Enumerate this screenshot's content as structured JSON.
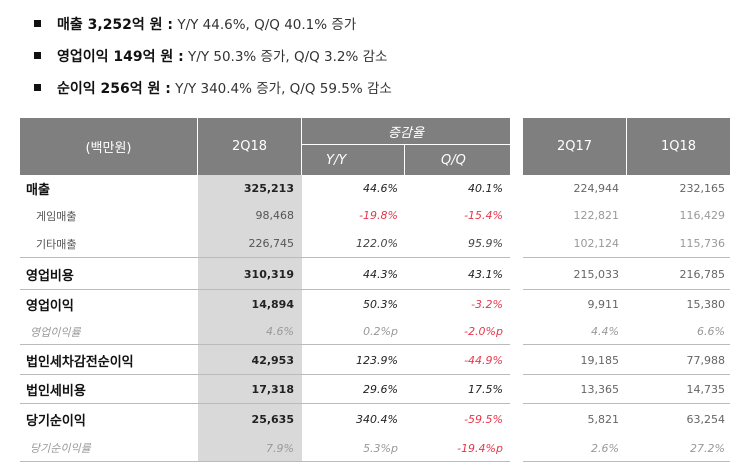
{
  "summary": [
    {
      "bold": "매출  3,252억 원 :",
      "rest": " Y/Y 44.6%, Q/Q 40.1% 증가"
    },
    {
      "bold": "영업이익  149억 원 :",
      "rest": " Y/Y 50.3% 증가, Q/Q 3.2% 감소"
    },
    {
      "bold": "순이익  256억 원 :",
      "rest": " Y/Y 340.4% 증가, Q/Q 59.5% 감소"
    }
  ],
  "table": {
    "unit": "(백만원)",
    "col_2q18": "2Q18",
    "growth": "증감율",
    "yy": "Y/Y",
    "qq": "Q/Q",
    "col_2q17": "2Q17",
    "col_1q18": "1Q18",
    "rows": [
      {
        "type": "main",
        "label": "매출",
        "v": [
          "325,213",
          "44.6%",
          "40.1%",
          "224,944",
          "232,165"
        ]
      },
      {
        "type": "sub",
        "label": "게임매출",
        "v": [
          "98,468",
          "-19.8%",
          "-15.4%",
          "122,821",
          "116,429"
        ]
      },
      {
        "type": "sub",
        "label": "기타매출",
        "v": [
          "226,745",
          "122.0%",
          "95.9%",
          "102,124",
          "115,736"
        ]
      },
      {
        "type": "main",
        "label": "영업비용",
        "v": [
          "310,319",
          "44.3%",
          "43.1%",
          "215,033",
          "216,785"
        ]
      },
      {
        "type": "main",
        "label": "영업이익",
        "v": [
          "14,894",
          "50.3%",
          "-3.2%",
          "9,911",
          "15,380"
        ]
      },
      {
        "type": "ratio",
        "label": "영업이익률",
        "v": [
          "4.6%",
          "0.2%p",
          "-2.0%p",
          "4.4%",
          "6.6%"
        ]
      },
      {
        "type": "main",
        "label": "법인세차감전순이익",
        "v": [
          "42,953",
          "123.9%",
          "-44.9%",
          "19,185",
          "77,988"
        ]
      },
      {
        "type": "main",
        "label": "법인세비용",
        "v": [
          "17,318",
          "29.6%",
          "17.5%",
          "13,365",
          "14,735"
        ]
      },
      {
        "type": "main",
        "label": "당기순이익",
        "v": [
          "25,635",
          "340.4%",
          "-59.5%",
          "5,821",
          "63,254"
        ]
      },
      {
        "type": "ratio",
        "label": "당기순이익률",
        "v": [
          "7.9%",
          "5.3%p",
          "-19.4%p",
          "2.6%",
          "27.2%"
        ]
      }
    ]
  },
  "colors": {
    "header": "#7f7f7f",
    "shade": "#d9d9d9",
    "negative": "#e8374b"
  }
}
